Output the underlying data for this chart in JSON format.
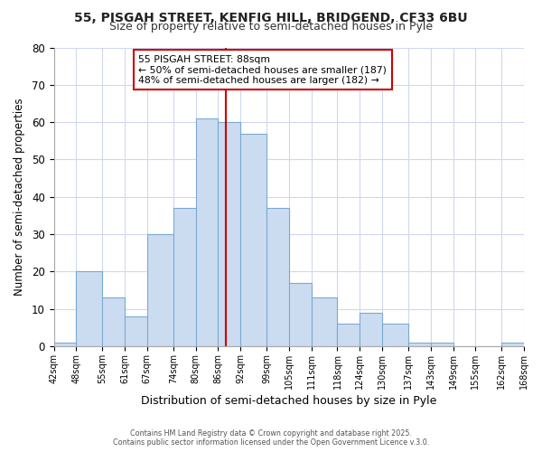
{
  "title": "55, PISGAH STREET, KENFIG HILL, BRIDGEND, CF33 6BU",
  "subtitle": "Size of property relative to semi-detached houses in Pyle",
  "xlabel": "Distribution of semi-detached houses by size in Pyle",
  "ylabel": "Number of semi-detached properties",
  "bin_edges": [
    42,
    48,
    55,
    61,
    67,
    74,
    80,
    86,
    92,
    99,
    105,
    111,
    118,
    124,
    130,
    137,
    143,
    149,
    155,
    162,
    168
  ],
  "bin_labels": [
    "42sqm",
    "48sqm",
    "55sqm",
    "61sqm",
    "67sqm",
    "74sqm",
    "80sqm",
    "86sqm",
    "92sqm",
    "99sqm",
    "105sqm",
    "111sqm",
    "118sqm",
    "124sqm",
    "130sqm",
    "137sqm",
    "143sqm",
    "149sqm",
    "155sqm",
    "162sqm",
    "168sqm"
  ],
  "counts": [
    1,
    20,
    13,
    8,
    30,
    37,
    61,
    60,
    57,
    37,
    17,
    13,
    6,
    9,
    6,
    1,
    1,
    0,
    0,
    1
  ],
  "bar_color": "#ccdcf0",
  "bar_edge_color": "#7aaad0",
  "vline_x": 88,
  "vline_color": "#cc0000",
  "annotation_title": "55 PISGAH STREET: 88sqm",
  "annotation_line1": "← 50% of semi-detached houses are smaller (187)",
  "annotation_line2": "48% of semi-detached houses are larger (182) →",
  "annotation_box_color": "#ffffff",
  "annotation_box_edge": "#cc0000",
  "ylim": [
    0,
    80
  ],
  "yticks": [
    0,
    10,
    20,
    30,
    40,
    50,
    60,
    70,
    80
  ],
  "bg_color": "#ffffff",
  "plot_bg_color": "#ffffff",
  "grid_color": "#d0d8f0",
  "footer1": "Contains HM Land Registry data © Crown copyright and database right 2025.",
  "footer2": "Contains public sector information licensed under the Open Government Licence v.3.0."
}
